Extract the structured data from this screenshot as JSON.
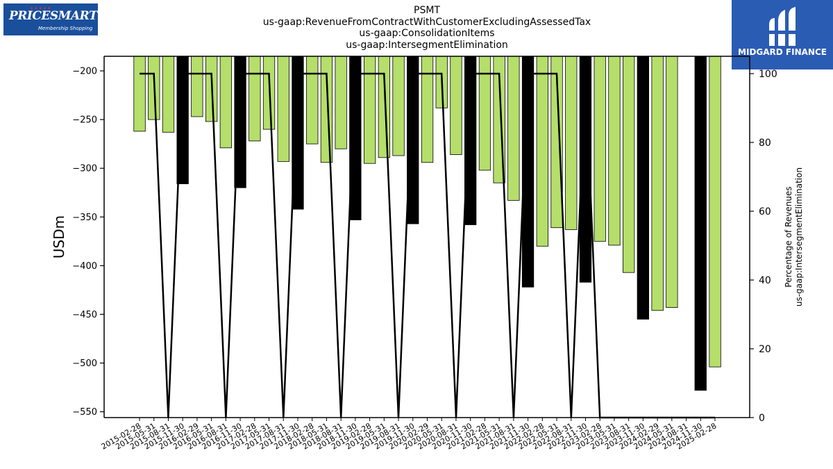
{
  "header": {
    "title_lines": [
      "PSMT",
      "us-gaap:RevenueFromContractWithCustomerExcludingAssessedTax",
      "us-gaap:ConsolidationItems",
      "us-gaap:IntersegmentElimination"
    ]
  },
  "logos": {
    "left_brand": "PRICESMART",
    "left_tagline": "Membership Shopping",
    "right_name": "MIDGARD FINANCE"
  },
  "colors": {
    "bar_green": "#b5de6b",
    "bar_black": "#000000",
    "line": "#000000"
  },
  "chart_data": {
    "type": "bar",
    "categories": [
      "2015-02-28",
      "2015-05-31",
      "2015-08-31",
      "2015-11-30",
      "2016-02-29",
      "2016-05-31",
      "2016-08-31",
      "2016-11-30",
      "2017-02-28",
      "2017-05-31",
      "2017-08-31",
      "2017-11-30",
      "2018-02-28",
      "2018-05-31",
      "2018-08-31",
      "2018-11-30",
      "2019-02-28",
      "2019-05-31",
      "2019-08-31",
      "2019-11-30",
      "2020-02-29",
      "2020-05-31",
      "2020-08-31",
      "2020-11-30",
      "2021-02-28",
      "2021-05-31",
      "2021-08-31",
      "2021-11-30",
      "2022-02-28",
      "2022-05-31",
      "2022-08-31",
      "2022-11-30",
      "2023-02-28",
      "2023-05-31",
      "2023-08-31",
      "2023-11-30",
      "2024-02-29",
      "2024-05-31",
      "2024-08-31",
      "2024-11-30",
      "2025-02-28"
    ],
    "series": [
      {
        "values": [
          -262,
          -250,
          -263,
          -316,
          -247,
          -252,
          -279,
          -320,
          -272,
          -260,
          -293,
          -342,
          -275,
          -294,
          -280,
          -353,
          -295,
          -289,
          -287,
          -357,
          -294,
          -238,
          -286,
          -358,
          -302,
          -315,
          -333,
          -422,
          -380,
          -361,
          -363,
          -417,
          -375,
          -379,
          -407,
          -455,
          -446,
          -443,
          null,
          -528,
          -504
        ],
        "highlight": [
          false,
          false,
          false,
          true,
          false,
          false,
          false,
          true,
          false,
          false,
          false,
          true,
          false,
          false,
          false,
          true,
          false,
          false,
          false,
          true,
          false,
          false,
          false,
          true,
          false,
          false,
          false,
          true,
          false,
          false,
          false,
          true,
          false,
          false,
          false,
          true,
          false,
          false,
          false,
          true,
          false
        ]
      },
      {
        "axis": "right",
        "values": [
          100,
          100,
          0,
          100,
          100,
          100,
          0,
          100,
          100,
          100,
          0,
          100,
          100,
          100,
          0,
          100,
          100,
          100,
          0,
          100,
          100,
          100,
          0,
          100,
          100,
          100,
          0,
          100,
          100,
          100,
          0,
          100,
          0,
          0,
          0,
          0,
          0,
          0,
          0,
          0,
          0
        ]
      }
    ],
    "ylabel": "USDm",
    "y2label_lines": [
      "Percentage of Revenues",
      "us-gaap:IntersegmentElimination"
    ],
    "ylim": [
      -556,
      -185
    ],
    "y2lim": [
      0,
      100
    ],
    "yticks": [
      -200,
      -250,
      -300,
      -350,
      -400,
      -450,
      -500,
      -550
    ],
    "y2ticks": [
      0,
      20,
      40,
      60,
      80,
      100
    ],
    "grid": false
  }
}
